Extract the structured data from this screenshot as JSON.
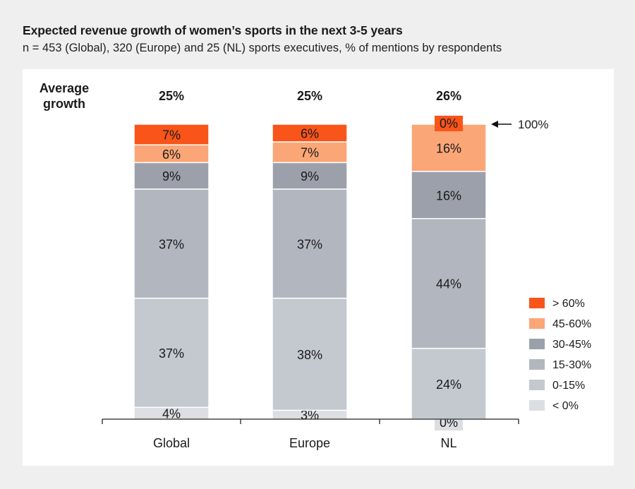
{
  "header": {
    "title": "Expected revenue growth of women’s sports in the next 3-5 years",
    "subtitle": "n = 453 (Global), 320 (Europe) and 25 (NL) sports executives, % of mentions by respondents"
  },
  "chart_data": {
    "type": "bar",
    "stacked": true,
    "title": "Expected revenue growth of women’s sports in the next 3-5 years",
    "subtitle": "n = 453 (Global), 320 (Europe) and 25 (NL) sports executives, % of mentions by respondents",
    "categories": [
      "Global",
      "Europe",
      "NL"
    ],
    "average_growth_label": [
      "Average",
      "growth"
    ],
    "average_growth": [
      "25%",
      "25%",
      "26%"
    ],
    "series": [
      {
        "name": "< 0%",
        "color": "#dcdee2",
        "values": [
          4,
          3,
          0
        ]
      },
      {
        "name": "0-15%",
        "color": "#c4c8cf",
        "values": [
          37,
          38,
          24
        ]
      },
      {
        "name": "15-30%",
        "color": "#b2b6bf",
        "values": [
          37,
          37,
          44
        ]
      },
      {
        "name": "30-45%",
        "color": "#9ca0ab",
        "values": [
          9,
          9,
          16
        ]
      },
      {
        "name": "45-60%",
        "color": "#fba676",
        "values": [
          6,
          7,
          16
        ]
      },
      {
        "name": "> 60%",
        "color": "#f9541a",
        "values": [
          7,
          6,
          0
        ]
      }
    ],
    "annotation": "100%",
    "ylim": [
      0,
      100
    ],
    "legend_position": "right",
    "grid": false
  }
}
